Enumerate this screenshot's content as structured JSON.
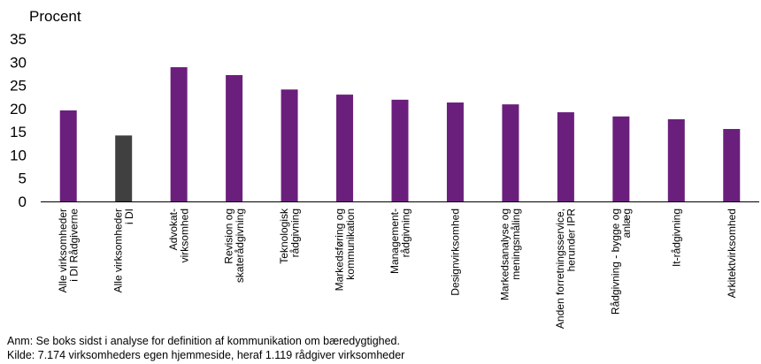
{
  "chart_data": {
    "type": "bar",
    "ylabel": "Procent",
    "ylim": [
      0,
      35
    ],
    "yticks": [
      0,
      5,
      10,
      15,
      20,
      25,
      30,
      35
    ],
    "grid": false,
    "legend": "none",
    "categories": [
      [
        "Alle virksomheder",
        "i DI Rådgiverne"
      ],
      [
        "Alle virksomheder",
        "i DI"
      ],
      [
        "Advokat-",
        "virksomhed"
      ],
      [
        "Revision og",
        "skaterådgivning"
      ],
      [
        "Teknologisk",
        "rådgivning"
      ],
      [
        "Markedsføring og",
        "kommunikation"
      ],
      [
        "Management-",
        "rådgivning"
      ],
      [
        "Designvirksomhed"
      ],
      [
        "Markedsanalyse og",
        "meningsmåling"
      ],
      [
        "Anden forretningsservice,",
        "herunder IPR"
      ],
      [
        "Rådgivning - bygge og",
        "anlæg"
      ],
      [
        "It-rådgivning"
      ],
      [
        "Arkitektvirksomhed"
      ]
    ],
    "values": [
      19.6,
      14.2,
      28.9,
      27.2,
      24.1,
      23.0,
      21.9,
      21.3,
      20.9,
      19.2,
      18.3,
      17.7,
      15.6
    ],
    "bar_colors": [
      "#6b1f7c",
      "#404040",
      "#6b1f7c",
      "#6b1f7c",
      "#6b1f7c",
      "#6b1f7c",
      "#6b1f7c",
      "#6b1f7c",
      "#6b1f7c",
      "#6b1f7c",
      "#6b1f7c",
      "#6b1f7c",
      "#6b1f7c"
    ]
  },
  "notes": {
    "anm": "Anm: Se boks sidst i analyse for definition af kommunikation om bæredygtighed.",
    "kilde": "Kilde: 7.174 virksomheders egen hjemmeside, heraf 1.119 rådgiver virksomheder"
  }
}
